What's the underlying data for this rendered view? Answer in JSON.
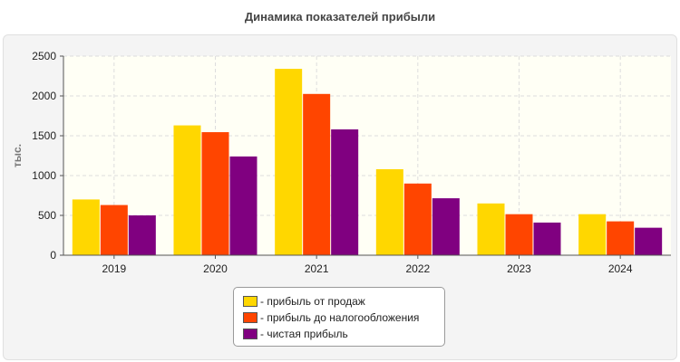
{
  "chart_data": {
    "type": "bar",
    "title": "Динамика показателей прибыли",
    "ylabel": "тыс.",
    "xlabel": "",
    "categories": [
      "2019",
      "2020",
      "2021",
      "2022",
      "2023",
      "2024"
    ],
    "series": [
      {
        "name": "- прибыль от продаж",
        "color": "#ffd700",
        "values": [
          700,
          1630,
          2340,
          1080,
          650,
          515
        ]
      },
      {
        "name": "- прибыль до налогообложения",
        "color": "#ff4500",
        "values": [
          630,
          1545,
          2025,
          900,
          515,
          425
        ]
      },
      {
        "name": "- чистая прибыль",
        "color": "#800080",
        "values": [
          500,
          1240,
          1580,
          715,
          410,
          345
        ]
      }
    ],
    "ylim": [
      0,
      2500
    ],
    "yticks": [
      0,
      500,
      1000,
      1500,
      2000,
      2500
    ],
    "grid": true,
    "legend_position": "bottom-center",
    "plot_background": "#fffff5"
  }
}
